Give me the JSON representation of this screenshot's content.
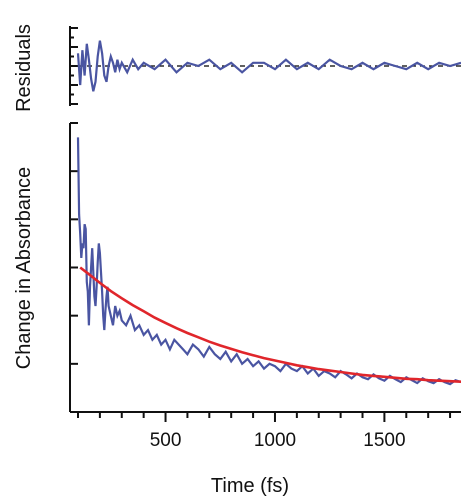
{
  "chart_data": [
    {
      "panel": "residuals",
      "type": "line",
      "ylabel": "Residuals",
      "xlim": [
        100,
        1850
      ],
      "ylim": [
        -0.012,
        0.012
      ],
      "grid": false,
      "baseline": {
        "y": 0,
        "style": "dashed",
        "color": "#000000"
      },
      "series": [
        {
          "color": "#4a55a2",
          "x": [
            100,
            110,
            120,
            130,
            140,
            150,
            160,
            170,
            180,
            190,
            200,
            210,
            220,
            230,
            240,
            250,
            260,
            270,
            280,
            290,
            300,
            325,
            350,
            375,
            400,
            450,
            500,
            550,
            600,
            650,
            700,
            750,
            800,
            850,
            900,
            950,
            1000,
            1050,
            1100,
            1150,
            1200,
            1250,
            1300,
            1350,
            1400,
            1450,
            1500,
            1550,
            1600,
            1650,
            1700,
            1750,
            1800,
            1850
          ],
          "y": [
            0.004,
            -0.006,
            0.005,
            -0.003,
            0.007,
            0.002,
            -0.004,
            -0.008,
            -0.005,
            0.003,
            0.008,
            0.004,
            -0.003,
            -0.005,
            0.0,
            0.003,
            0.001,
            -0.002,
            0.002,
            -0.001,
            0.001,
            -0.002,
            0.002,
            -0.001,
            0.001,
            -0.001,
            0.002,
            -0.002,
            0.001,
            0.0,
            0.002,
            -0.001,
            0.001,
            -0.002,
            0.001,
            0.001,
            -0.001,
            0.002,
            -0.001,
            0.001,
            -0.001,
            0.002,
            0.0,
            -0.001,
            0.001,
            -0.001,
            0.001,
            0.0,
            -0.001,
            0.001,
            -0.001,
            0.001,
            0.0,
            0.001
          ]
        }
      ]
    },
    {
      "panel": "main",
      "type": "line",
      "xlabel": "Time (fs)",
      "ylabel": "Change in Absorbance",
      "xlim": [
        100,
        1850
      ],
      "x_ticks": [
        500,
        1000,
        1500
      ],
      "x_minor_step": 100,
      "ylim": [
        0,
        6
      ],
      "y_ticks": [
        0,
        1,
        2,
        3,
        4,
        5,
        6
      ],
      "y_tick_labels_visible": false,
      "grid": false,
      "series": [
        {
          "kind": "data",
          "color": "#4a55a2",
          "x": [
            100,
            105,
            110,
            115,
            120,
            125,
            130,
            135,
            140,
            145,
            150,
            155,
            160,
            165,
            170,
            175,
            180,
            185,
            190,
            195,
            200,
            205,
            210,
            215,
            220,
            225,
            230,
            235,
            240,
            250,
            260,
            270,
            280,
            290,
            300,
            320,
            340,
            360,
            380,
            400,
            420,
            440,
            460,
            480,
            500,
            520,
            540,
            560,
            580,
            600,
            625,
            650,
            675,
            700,
            725,
            750,
            775,
            800,
            825,
            850,
            875,
            900,
            925,
            950,
            975,
            1000,
            1025,
            1050,
            1075,
            1100,
            1125,
            1150,
            1175,
            1200,
            1225,
            1250,
            1275,
            1300,
            1325,
            1350,
            1375,
            1400,
            1425,
            1450,
            1475,
            1500,
            1525,
            1550,
            1575,
            1600,
            1625,
            1650,
            1675,
            1700,
            1725,
            1750,
            1775,
            1800,
            1825,
            1850
          ],
          "y": [
            5.7,
            4.1,
            3.7,
            3.2,
            3.5,
            3.4,
            3.9,
            3.8,
            2.7,
            2.5,
            1.8,
            2.6,
            3.0,
            3.4,
            2.9,
            2.4,
            2.2,
            2.6,
            3.1,
            3.5,
            3.3,
            2.9,
            2.5,
            2.0,
            1.7,
            2.1,
            2.4,
            2.6,
            2.2,
            2.0,
            1.8,
            2.2,
            2.0,
            2.1,
            1.9,
            1.8,
            2.0,
            1.7,
            1.8,
            1.6,
            1.7,
            1.5,
            1.6,
            1.4,
            1.5,
            1.3,
            1.5,
            1.4,
            1.3,
            1.2,
            1.4,
            1.3,
            1.15,
            1.35,
            1.2,
            1.1,
            1.25,
            1.05,
            1.2,
            1.0,
            1.1,
            0.95,
            1.05,
            0.9,
            1.0,
            0.95,
            0.85,
            1.0,
            0.9,
            0.85,
            0.95,
            0.8,
            0.9,
            0.75,
            0.85,
            0.8,
            0.72,
            0.85,
            0.78,
            0.7,
            0.8,
            0.72,
            0.68,
            0.78,
            0.7,
            0.65,
            0.75,
            0.68,
            0.62,
            0.72,
            0.66,
            0.6,
            0.7,
            0.64,
            0.6,
            0.68,
            0.62,
            0.58,
            0.66,
            0.62
          ]
        },
        {
          "kind": "fit",
          "color": "#e0262b",
          "x": [
            110,
            150,
            200,
            250,
            300,
            350,
            400,
            450,
            500,
            550,
            600,
            650,
            700,
            750,
            800,
            850,
            900,
            950,
            1000,
            1050,
            1100,
            1150,
            1200,
            1250,
            1300,
            1350,
            1400,
            1450,
            1500,
            1550,
            1600,
            1650,
            1700,
            1750,
            1800,
            1850
          ],
          "y": [
            3.0,
            2.86,
            2.68,
            2.51,
            2.36,
            2.22,
            2.09,
            1.96,
            1.85,
            1.74,
            1.64,
            1.55,
            1.46,
            1.38,
            1.31,
            1.24,
            1.18,
            1.12,
            1.07,
            1.02,
            0.97,
            0.93,
            0.89,
            0.86,
            0.83,
            0.8,
            0.77,
            0.75,
            0.73,
            0.71,
            0.69,
            0.68,
            0.66,
            0.65,
            0.64,
            0.63
          ]
        }
      ]
    }
  ]
}
